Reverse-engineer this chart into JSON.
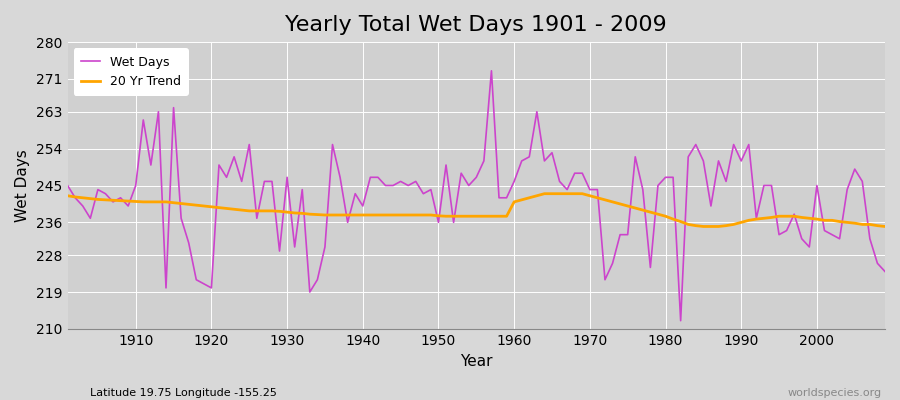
{
  "title": "Yearly Total Wet Days 1901 - 2009",
  "xlabel": "Year",
  "ylabel": "Wet Days",
  "subtitle": "Latitude 19.75 Longitude -155.25",
  "watermark": "worldspecies.org",
  "years": [
    1901,
    1902,
    1903,
    1904,
    1905,
    1906,
    1907,
    1908,
    1909,
    1910,
    1911,
    1912,
    1913,
    1914,
    1915,
    1916,
    1917,
    1918,
    1919,
    1920,
    1921,
    1922,
    1923,
    1924,
    1925,
    1926,
    1927,
    1928,
    1929,
    1930,
    1931,
    1932,
    1933,
    1934,
    1935,
    1936,
    1937,
    1938,
    1939,
    1940,
    1941,
    1942,
    1943,
    1944,
    1945,
    1946,
    1947,
    1948,
    1949,
    1950,
    1951,
    1952,
    1953,
    1954,
    1955,
    1956,
    1957,
    1958,
    1959,
    1960,
    1961,
    1962,
    1963,
    1964,
    1965,
    1966,
    1967,
    1968,
    1969,
    1970,
    1971,
    1972,
    1973,
    1974,
    1975,
    1976,
    1977,
    1978,
    1979,
    1980,
    1981,
    1982,
    1983,
    1984,
    1985,
    1986,
    1987,
    1988,
    1989,
    1990,
    1991,
    1992,
    1993,
    1994,
    1995,
    1996,
    1997,
    1998,
    1999,
    2000,
    2001,
    2002,
    2003,
    2004,
    2005,
    2006,
    2007,
    2008,
    2009
  ],
  "wet_days": [
    245,
    242,
    240,
    237,
    244,
    243,
    241,
    242,
    240,
    245,
    261,
    250,
    263,
    220,
    264,
    237,
    231,
    222,
    221,
    220,
    250,
    247,
    252,
    246,
    255,
    237,
    246,
    246,
    229,
    247,
    230,
    244,
    219,
    222,
    230,
    255,
    247,
    236,
    243,
    240,
    247,
    247,
    245,
    245,
    246,
    245,
    246,
    243,
    244,
    236,
    250,
    236,
    248,
    245,
    247,
    251,
    273,
    242,
    242,
    246,
    251,
    252,
    263,
    251,
    253,
    246,
    244,
    248,
    248,
    244,
    244,
    222,
    226,
    233,
    233,
    252,
    244,
    225,
    245,
    247,
    247,
    212,
    252,
    255,
    251,
    240,
    251,
    246,
    255,
    251,
    255,
    237,
    245,
    245,
    233,
    234,
    238,
    232,
    230,
    245,
    234,
    233,
    232,
    244,
    249,
    246,
    232,
    226,
    224
  ],
  "trend": [
    242.5,
    242.2,
    242.0,
    241.8,
    241.6,
    241.5,
    241.4,
    241.3,
    241.2,
    241.1,
    241.0,
    241.0,
    241.0,
    241.0,
    240.8,
    240.6,
    240.4,
    240.2,
    240.0,
    239.8,
    239.6,
    239.4,
    239.2,
    239.0,
    238.8,
    238.8,
    238.8,
    238.8,
    238.7,
    238.5,
    238.3,
    238.2,
    238.0,
    237.9,
    237.8,
    237.8,
    237.8,
    237.8,
    237.8,
    237.8,
    237.8,
    237.8,
    237.8,
    237.8,
    237.8,
    237.8,
    237.8,
    237.8,
    237.8,
    237.6,
    237.5,
    237.5,
    237.5,
    237.5,
    237.5,
    237.5,
    237.5,
    237.5,
    237.5,
    241.0,
    241.5,
    242.0,
    242.5,
    243.0,
    243.0,
    243.0,
    243.0,
    243.0,
    243.0,
    242.5,
    242.0,
    241.5,
    241.0,
    240.5,
    240.0,
    239.5,
    239.0,
    238.5,
    238.0,
    237.5,
    236.8,
    236.2,
    235.5,
    235.2,
    235.0,
    235.0,
    235.0,
    235.2,
    235.5,
    236.0,
    236.5,
    236.8,
    237.0,
    237.2,
    237.5,
    237.5,
    237.5,
    237.2,
    237.0,
    236.8,
    236.5,
    236.5,
    236.2,
    236.0,
    235.8,
    235.5,
    235.5,
    235.2,
    235.0
  ],
  "wet_days_color": "#cc44cc",
  "trend_color": "#ffa500",
  "bg_color": "#d8d8d8",
  "plot_bg_color": "#d0d0d0",
  "ylim": [
    210,
    280
  ],
  "yticks": [
    210,
    219,
    228,
    236,
    245,
    254,
    263,
    271,
    280
  ],
  "xticks": [
    1910,
    1920,
    1930,
    1940,
    1950,
    1960,
    1970,
    1980,
    1990,
    2000
  ],
  "legend_wet_label": "Wet Days",
  "legend_trend_label": "20 Yr Trend",
  "title_fontsize": 16,
  "label_fontsize": 11,
  "tick_fontsize": 10,
  "grid_color": "#ffffff",
  "grid_linewidth": 0.8
}
